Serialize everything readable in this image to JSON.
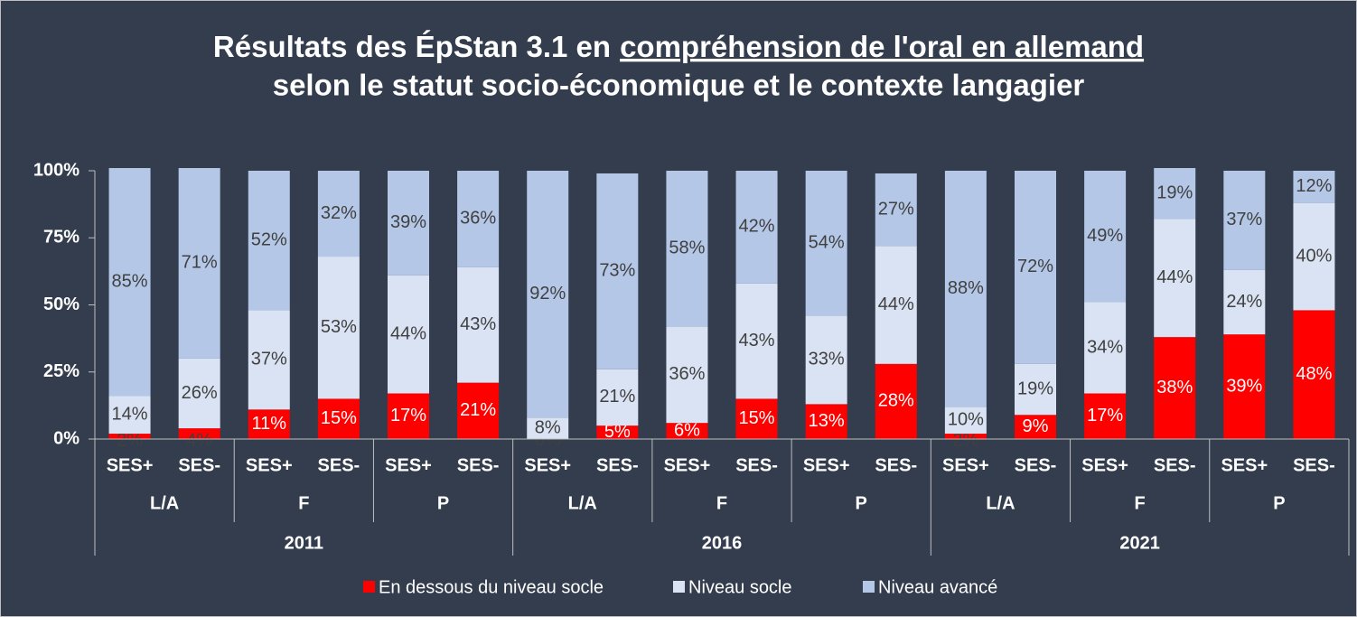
{
  "chart_data": {
    "type": "stacked_bar",
    "title": [
      "Résultats des ÉpStan 3.1 en",
      "compréhension de l'oral en allemand",
      "selon le statut socio-économique et le contexte langagier"
    ],
    "categories": [
      "SES+",
      "SES-",
      "SES+",
      "SES-",
      "SES+",
      "SES-",
      "SES+",
      "SES-",
      "SES+",
      "SES-",
      "SES+",
      "SES-",
      "SES+",
      "SES-",
      "SES+",
      "SES-",
      "SES+",
      "SES-"
    ],
    "category_groups": [
      "L/A",
      "F",
      "P",
      "L/A",
      "F",
      "P",
      "L/A",
      "F",
      "P"
    ],
    "years": [
      "2011",
      "2016",
      "2021"
    ],
    "ylim": [
      0,
      100
    ],
    "yticks": [
      {
        "value": 0,
        "label": "0%"
      },
      {
        "value": 25,
        "label": "25%"
      },
      {
        "value": 50,
        "label": "50%"
      },
      {
        "value": 75,
        "label": "75%"
      },
      {
        "value": 100,
        "label": "100%"
      }
    ],
    "grid": false,
    "legend": "bottom",
    "series": [
      {
        "name": "En dessous du niveau socle",
        "color": "#ff0000",
        "values": [
          2,
          4,
          11,
          15,
          17,
          21,
          0,
          5,
          6,
          15,
          13,
          28,
          2,
          9,
          17,
          38,
          39,
          48
        ],
        "value_labels": [
          "2%",
          "4%",
          "11%",
          "15%",
          "17%",
          "21%",
          "0%",
          "5%",
          "6%",
          "15%",
          "13%",
          "28%",
          "2%",
          "9%",
          "17%",
          "38%",
          "39%",
          "48%"
        ]
      },
      {
        "name": "Niveau socle",
        "color": "#dae3f3",
        "values": [
          14,
          26,
          37,
          53,
          44,
          43,
          8,
          21,
          36,
          43,
          33,
          44,
          10,
          19,
          34,
          44,
          24,
          40
        ],
        "value_labels": [
          "14%",
          "26%",
          "37%",
          "53%",
          "44%",
          "43%",
          "8%",
          "21%",
          "36%",
          "43%",
          "33%",
          "44%",
          "10%",
          "19%",
          "34%",
          "44%",
          "24%",
          "40%"
        ]
      },
      {
        "name": "Niveau avancé",
        "color": "#b4c7e7",
        "values": [
          85,
          71,
          52,
          32,
          39,
          36,
          92,
          73,
          58,
          42,
          54,
          27,
          88,
          72,
          49,
          19,
          37,
          12
        ],
        "value_labels": [
          "85%",
          "71%",
          "52%",
          "32%",
          "39%",
          "36%",
          "92%",
          "73%",
          "58%",
          "42%",
          "54%",
          "27%",
          "88%",
          "72%",
          "49%",
          "19%",
          "37%",
          "12%"
        ]
      }
    ]
  }
}
